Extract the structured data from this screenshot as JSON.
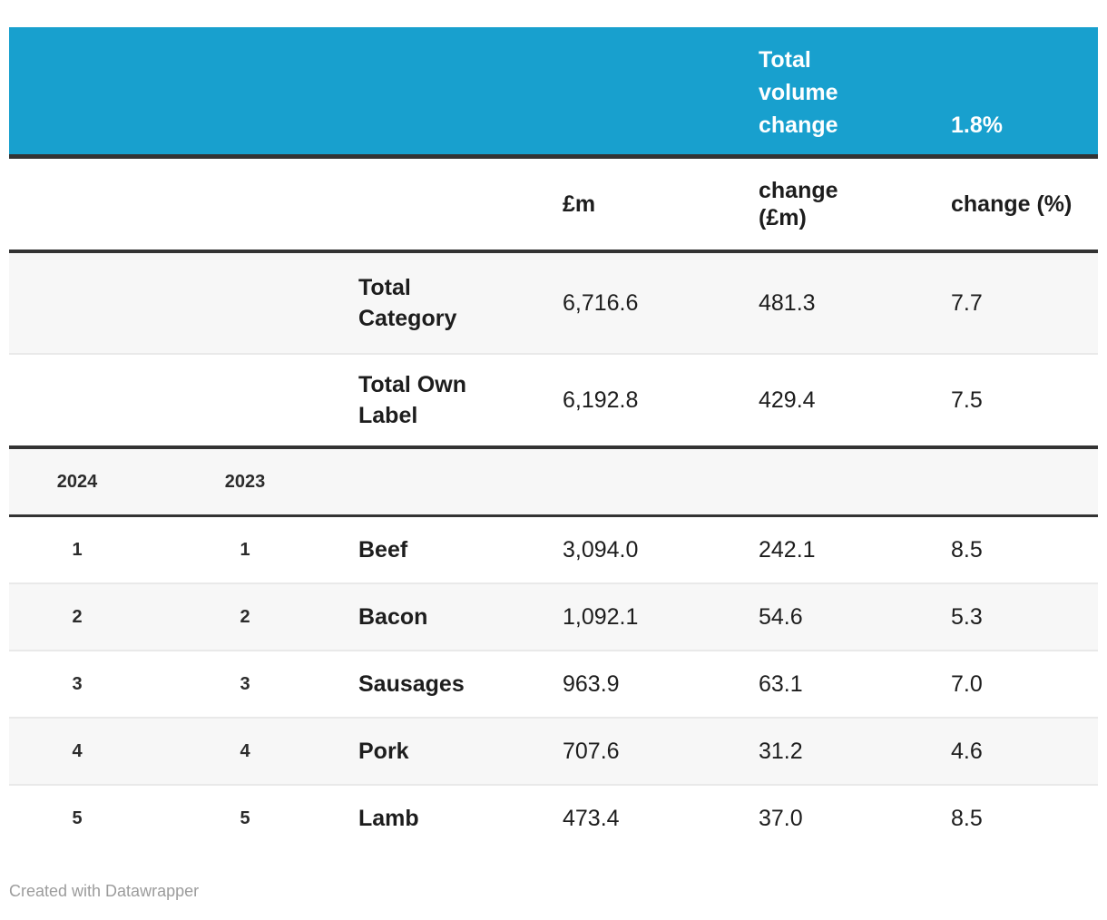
{
  "colors": {
    "accent_blue": "#18a0ce",
    "header_border": "#333333",
    "row_separator": "#e9e9e9",
    "row_alt_bg": "#f7f7f7",
    "text": "#1d1d1d",
    "muted_text": "#9c9c9c",
    "banner_text": "#ffffff"
  },
  "banner": {
    "label": "Total volume change",
    "value": "1.8%"
  },
  "column_headers": {
    "value": "£m",
    "change_abs": "change (£m)",
    "change_pct": "change (%)"
  },
  "rank_headers": {
    "current": "2024",
    "previous": "2023"
  },
  "summary": [
    {
      "label": "Total Category",
      "value": "6,716.6",
      "change_abs": "481.3",
      "change_pct": "7.7"
    },
    {
      "label": "Total Own Label",
      "value": "6,192.8",
      "change_abs": "429.4",
      "change_pct": "7.5"
    }
  ],
  "rows": [
    {
      "rank_2024": "1",
      "rank_2023": "1",
      "category": "Beef",
      "value": "3,094.0",
      "change_abs": "242.1",
      "change_pct": "8.5"
    },
    {
      "rank_2024": "2",
      "rank_2023": "2",
      "category": "Bacon",
      "value": "1,092.1",
      "change_abs": "54.6",
      "change_pct": "5.3"
    },
    {
      "rank_2024": "3",
      "rank_2023": "3",
      "category": "Sausages",
      "value": "963.9",
      "change_abs": "63.1",
      "change_pct": "7.0"
    },
    {
      "rank_2024": "4",
      "rank_2023": "4",
      "category": "Pork",
      "value": "707.6",
      "change_abs": "31.2",
      "change_pct": "4.6"
    },
    {
      "rank_2024": "5",
      "rank_2023": "5",
      "category": "Lamb",
      "value": "473.4",
      "change_abs": "37.0",
      "change_pct": "8.5"
    }
  ],
  "footer": {
    "credit": "Created with Datawrapper"
  },
  "chart_data": {
    "type": "table",
    "banner": {
      "label": "Total volume change",
      "value_pct": 1.8
    },
    "columns": [
      "rank 2024",
      "rank 2023",
      "category",
      "£m",
      "change (£m)",
      "change (%)"
    ],
    "summary_rows": [
      {
        "category": "Total Category",
        "gbp_m": 6716.6,
        "change_gbp_m": 481.3,
        "change_pct": 7.7
      },
      {
        "category": "Total Own Label",
        "gbp_m": 6192.8,
        "change_gbp_m": 429.4,
        "change_pct": 7.5
      }
    ],
    "rows": [
      {
        "rank_2024": 1,
        "rank_2023": 1,
        "category": "Beef",
        "gbp_m": 3094.0,
        "change_gbp_m": 242.1,
        "change_pct": 8.5
      },
      {
        "rank_2024": 2,
        "rank_2023": 2,
        "category": "Bacon",
        "gbp_m": 1092.1,
        "change_gbp_m": 54.6,
        "change_pct": 5.3
      },
      {
        "rank_2024": 3,
        "rank_2023": 3,
        "category": "Sausages",
        "gbp_m": 963.9,
        "change_gbp_m": 63.1,
        "change_pct": 7.0
      },
      {
        "rank_2024": 4,
        "rank_2023": 4,
        "category": "Pork",
        "gbp_m": 707.6,
        "change_gbp_m": 31.2,
        "change_pct": 4.6
      },
      {
        "rank_2024": 5,
        "rank_2023": 5,
        "category": "Lamb",
        "gbp_m": 473.4,
        "change_gbp_m": 37.0,
        "change_pct": 8.5
      }
    ],
    "footer": "Created with Datawrapper"
  }
}
